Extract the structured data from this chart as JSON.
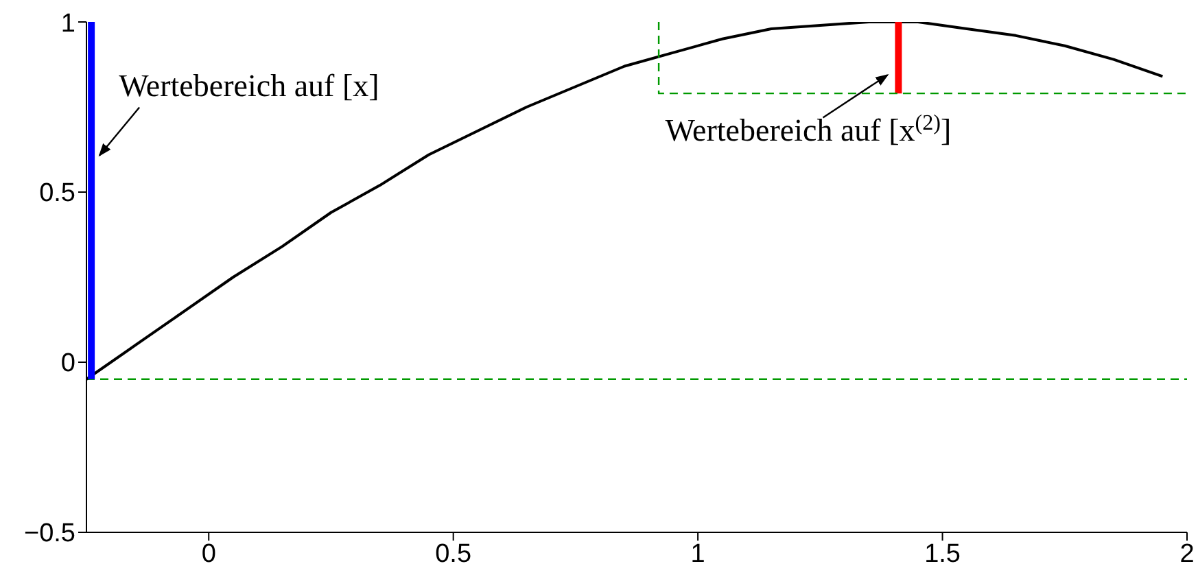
{
  "chart_data": {
    "type": "line",
    "xlim": [
      -0.25,
      2
    ],
    "xticks": [
      0,
      0.5,
      1,
      1.5,
      2
    ],
    "ylim": [
      -0.5,
      1
    ],
    "yticks": [
      -0.5,
      0,
      0.5,
      1
    ],
    "marker": "none",
    "series": [
      {
        "color": "#000000",
        "x": [
          -0.25,
          -0.15,
          -0.05,
          0.05,
          0.15,
          0.25,
          0.35,
          0.45,
          0.55,
          0.65,
          0.75,
          0.85,
          0.95,
          1.05,
          1.15,
          1.25,
          1.35,
          1.45,
          1.55,
          1.65,
          1.75,
          1.85,
          1.95
        ],
        "values": [
          -0.05,
          0.05,
          0.15,
          0.25,
          0.34,
          0.44,
          0.52,
          0.61,
          0.68,
          0.75,
          0.81,
          0.87,
          0.91,
          0.95,
          0.98,
          0.99,
          1,
          1,
          0.98,
          0.96,
          0.93,
          0.89,
          0.84
        ]
      },
      {
        "color": "#0000ff",
        "x": [
          -0.24,
          -0.24
        ],
        "values": [
          -0.05,
          1
        ]
      },
      {
        "color": "#ff0000",
        "x": [
          1.41,
          1.41
        ],
        "values": [
          0.79,
          1
        ]
      },
      {
        "color": "#009900",
        "line_style": "dashed",
        "x": [
          0.92,
          0.92,
          2
        ],
        "values": [
          1,
          0.79,
          0.79
        ]
      }
    ],
    "ref_lines": [
      {
        "axis": "y",
        "value": -0.05,
        "color": "#009900",
        "line_style": "dashed"
      }
    ],
    "annotations": [
      {
        "text": "Wertebereich auf [x]",
        "x": -0.24,
        "y": 0.6
      },
      {
        "text": "Wertebereich auf [x$^{(2)}$]",
        "x": 1.41,
        "y": 0.86
      }
    ]
  }
}
